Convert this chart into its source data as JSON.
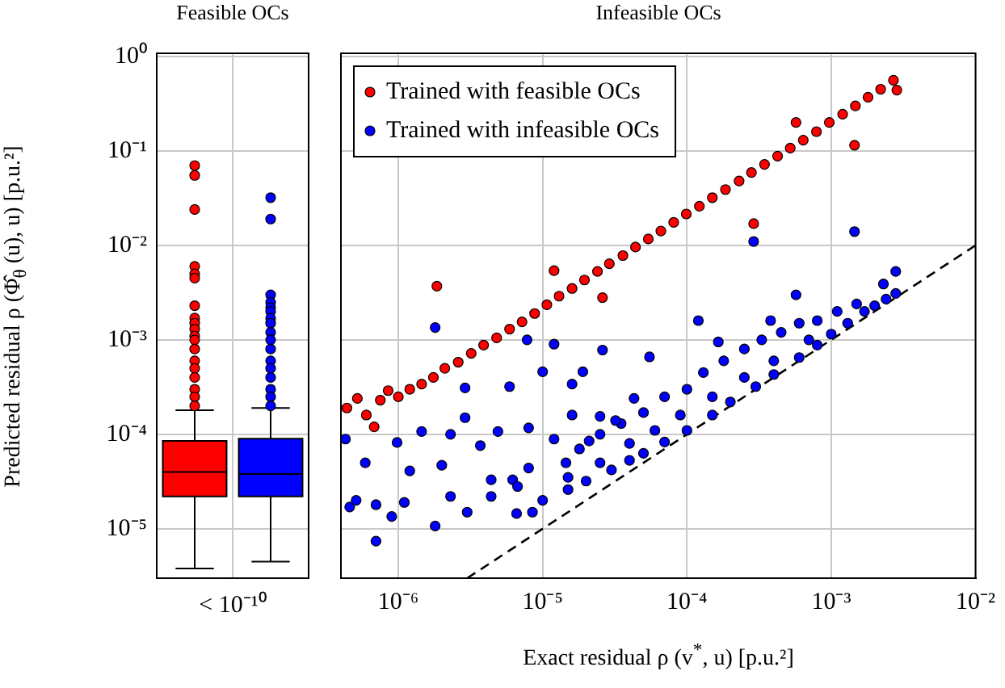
{
  "chart_data": [
    {
      "type": "box",
      "title": "Feasible OCs",
      "ylabel": "Predicted residual ρ (Φ̂$_{θ}$ (u), u) [p.u.²]",
      "categories": [
        "< 10⁻¹⁰"
      ],
      "series": [
        {
          "color": "#ff0000",
          "boxes": [
            {
              "low": 3.8e-06,
              "q1": 2.2e-05,
              "median": 4e-05,
              "q3": 8.5e-05,
              "high": 0.00018,
              "outliers": [
                0.07,
                0.055,
                0.024,
                0.006,
                0.005,
                0.0045,
                0.0023,
                0.0017,
                0.0015,
                0.0013,
                0.0011,
                0.001,
                0.0008,
                0.0006,
                0.0005,
                0.0004,
                0.0003,
                0.00025,
                0.0002
              ]
            }
          ]
        },
        {
          "color": "#0000ff",
          "boxes": [
            {
              "low": 4.5e-06,
              "q1": 2.2e-05,
              "median": 3.8e-05,
              "q3": 9e-05,
              "high": 0.00019,
              "outliers": [
                0.032,
                0.019,
                0.003,
                0.0025,
                0.0022,
                0.002,
                0.0017,
                0.0015,
                0.0012,
                0.001,
                0.0008,
                0.0006,
                0.0005,
                0.0004,
                0.0003,
                0.00025,
                0.0002
              ]
            }
          ]
        }
      ],
      "ylim": [
        3e-06,
        1.08
      ],
      "yticks": [
        {
          "value": 1,
          "label": "10⁰"
        },
        {
          "value": 0.1,
          "label": "10⁻¹"
        },
        {
          "value": 0.01,
          "label": "10⁻²"
        },
        {
          "value": 0.001,
          "label": "10⁻³"
        },
        {
          "value": 0.0001,
          "label": "10⁻⁴"
        },
        {
          "value": 1e-05,
          "label": "10⁻⁵"
        }
      ],
      "log": "y",
      "grid": true
    },
    {
      "type": "scatter",
      "title": "Infeasible OCs",
      "xlabel": "Exact residual ρ (v$^{*}$, u) [p.u.²]",
      "legend": "top left",
      "marker": "circle",
      "tick_labels": "x",
      "log": "xy",
      "grid": true,
      "xlim": [
        4e-07,
        0.01
      ],
      "xticks": [
        {
          "value": 1e-06,
          "label": "10⁻⁶"
        },
        {
          "value": 1e-05,
          "label": "10⁻⁵"
        },
        {
          "value": 0.0001,
          "label": "10⁻⁴"
        },
        {
          "value": 0.001,
          "label": "10⁻³"
        },
        {
          "value": 0.01,
          "label": "10⁻²"
        }
      ],
      "ylim": [
        3e-06,
        1.08
      ],
      "yticks": [
        {
          "value": 1,
          "label": null
        },
        {
          "value": 0.1,
          "label": null
        },
        {
          "value": 0.01,
          "label": null
        },
        {
          "value": 0.001,
          "label": null
        },
        {
          "value": 0.0001,
          "label": null
        },
        {
          "value": 1e-05,
          "label": null
        }
      ],
      "series": [
        {
          "name": "Trained with feasible OCs",
          "color": "#ff0000",
          "x": [
            4.4e-07,
            5.2e-07,
            6e-07,
            6.8e-07,
            7.5e-07,
            8.5e-07,
            1e-06,
            1.2e-06,
            1.45e-06,
            1.75e-06,
            2.1e-06,
            2.6e-06,
            3.2e-06,
            3.9e-06,
            4.8e-06,
            5.9e-06,
            7.2e-06,
            8.8e-06,
            1.07e-05,
            1.3e-05,
            1.6e-05,
            1.95e-05,
            2.4e-05,
            2.9e-05,
            3.6e-05,
            4.4e-05,
            5.4e-05,
            6.6e-05,
            8.1e-05,
            9.9e-05,
            0.000122,
            0.00015,
            0.000185,
            0.00023,
            0.00028,
            0.000345,
            0.000425,
            0.00052,
            0.00064,
            0.00079,
            0.00097,
            0.0012,
            0.00147,
            0.0018,
            0.0022,
            0.0027,
            0.00285,
            1.85e-06,
            1.2e-05,
            2.6e-05,
            0.00029,
            0.00057,
            0.00145
          ],
          "values": [
            0.00019,
            0.00024,
            0.00016,
            0.00012,
            0.00023,
            0.00029,
            0.00025,
            0.0003,
            0.00034,
            0.0004,
            0.0005,
            0.00058,
            0.00072,
            0.00088,
            0.00105,
            0.0013,
            0.00155,
            0.0019,
            0.00235,
            0.0029,
            0.0035,
            0.0043,
            0.0053,
            0.0064,
            0.0078,
            0.0096,
            0.0117,
            0.0142,
            0.0175,
            0.0215,
            0.026,
            0.032,
            0.039,
            0.048,
            0.059,
            0.072,
            0.088,
            0.107,
            0.13,
            0.16,
            0.2,
            0.245,
            0.3,
            0.37,
            0.45,
            0.56,
            0.44,
            0.0037,
            0.0054,
            0.0028,
            0.017,
            0.2,
            0.115
          ]
        },
        {
          "name": "Trained with infeasible OCs",
          "color": "#0000ff",
          "x": [
            1e-05,
            1.5e-05,
            2e-05,
            3e-05,
            4e-05,
            5e-05,
            7e-05,
            0.0001,
            0.00015,
            0.0002,
            0.0003,
            0.0004,
            0.0006,
            0.0008,
            0.001,
            0.0013,
            0.0017,
            0.002,
            0.0024,
            0.0028,
            0.0028,
            0.0023,
            0.0015,
            0.0011,
            0.0008,
            0.0006,
            0.00045,
            0.00033,
            0.00025,
            0.00018,
            0.00013,
            0.0001,
            7e-05,
            5e-05,
            3.5e-05,
            2.5e-05,
            1.8e-05,
            0.0007,
            0.0004,
            0.00025,
            0.00015,
            9e-05,
            6e-05,
            4e-05,
            2.5e-05,
            1.5e-05,
            0.00012,
            0.00038,
            0.00057,
            0.000165,
            2.6e-05,
            5.5e-05,
            1.9e-05,
            1e-05,
            5.9e-06,
            1.8e-06,
            7.8e-06,
            1.2e-05,
            4.3e-05,
            0.00145,
            0.00029,
            4.3e-07,
            4.6e-07,
            7e-07,
            7e-07,
            9e-07,
            9.8e-07,
            1.45e-06,
            1.2e-06,
            1.8e-06,
            2e-06,
            2.3e-06,
            2.9e-06,
            2.9e-06,
            3.7e-06,
            3e-06,
            4.4e-06,
            4.9e-06,
            6.2e-06,
            6.6e-06,
            8e-06,
            8e-06,
            8.5e-06,
            1.2e-05,
            1.6e-05,
            1.6e-05,
            2.1e-05,
            2.5e-05,
            3.2e-05,
            1.45e-05,
            5.9e-07,
            5.1e-07,
            1.1e-06,
            2.3e-06,
            4.4e-06,
            6.7e-06
          ],
          "values": [
            2e-05,
            2.6e-05,
            3.2e-05,
            4.2e-05,
            5.3e-05,
            6.3e-05,
            8.3e-05,
            0.00011,
            0.00016,
            0.00022,
            0.00032,
            0.00043,
            0.00065,
            0.00088,
            0.00115,
            0.0015,
            0.002,
            0.0023,
            0.0027,
            0.0031,
            0.0053,
            0.0039,
            0.0024,
            0.002,
            0.0016,
            0.0015,
            0.0012,
            0.001,
            0.0008,
            0.0006,
            0.00045,
            0.0003,
            0.00025,
            0.00017,
            0.00013,
            0.0001,
            7e-05,
            0.001,
            0.0006,
            0.0004,
            0.00025,
            0.00016,
            0.00011,
            8e-05,
            5e-05,
            3.5e-05,
            0.0016,
            0.0016,
            0.003,
            0.00095,
            0.00078,
            0.00066,
            0.00046,
            0.00046,
            0.00032,
            0.00135,
            0.001,
            0.0009,
            0.00024,
            0.014,
            0.011,
            8.9e-05,
            1.7e-05,
            7.4e-06,
            1.8e-05,
            1.35e-05,
            8.2e-05,
            0.000107,
            4.1e-05,
            1.07e-05,
            4.7e-05,
            0.0001,
            0.00015,
            0.00031,
            7.6e-05,
            1.5e-05,
            2.2e-05,
            0.000107,
            3.3e-05,
            1.45e-05,
            0.000117,
            4.4e-05,
            1.5e-05,
            8.9e-05,
            0.00034,
            0.00016,
            8.5e-05,
            0.000155,
            0.00014,
            5e-05,
            5e-05,
            2e-05,
            1.9e-05,
            2.2e-05,
            3.3e-05,
            2.8e-05
          ]
        },
        {
          "type": "line",
          "color": "#000000",
          "line_style": "dashed",
          "marker": "none",
          "x": [
            3e-06,
            0.01
          ],
          "values": [
            3e-06,
            0.01
          ]
        }
      ]
    }
  ]
}
